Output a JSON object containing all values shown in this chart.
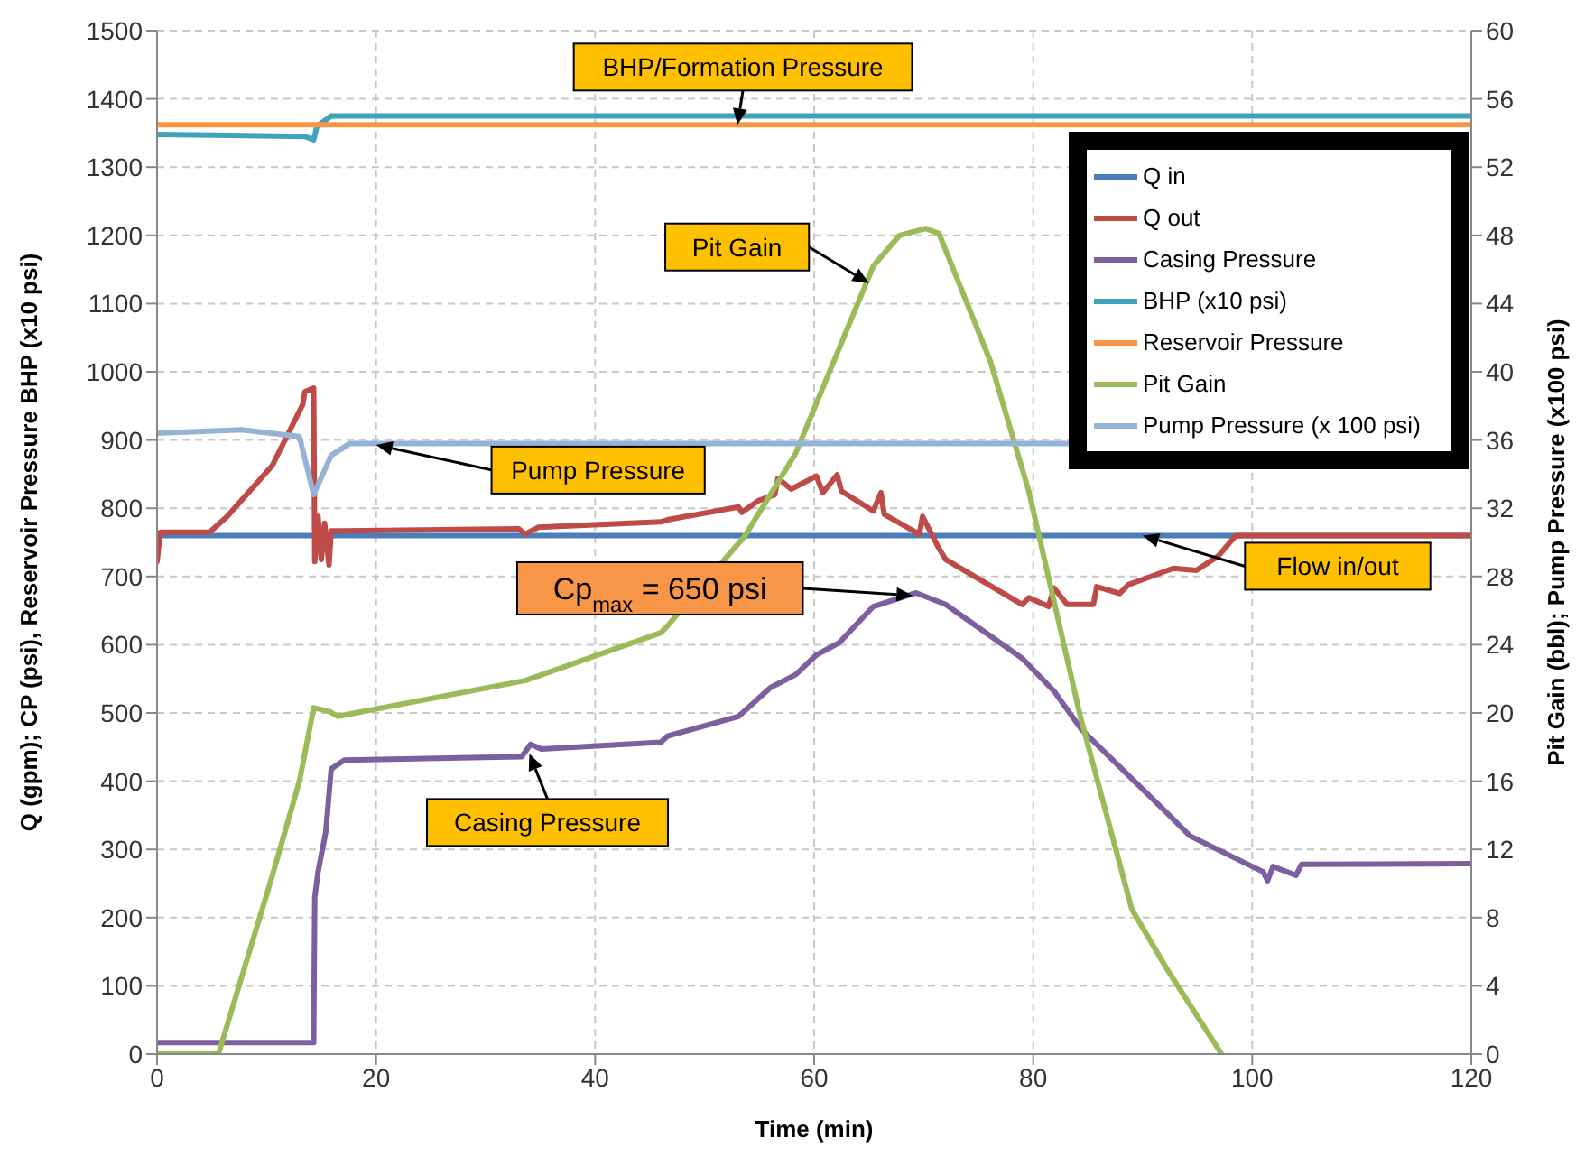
{
  "chart_data": {
    "type": "line",
    "xlabel": "Time (min)",
    "ylabel": "Q (gpm); CP (psi), Reservoir Pressure BHP (x10 psi)",
    "y2label": "Pit Gain (bbl); Pump Pressure (x100 psi)",
    "xlim": [
      0,
      120
    ],
    "xticks": [
      0,
      20,
      40,
      60,
      80,
      100,
      120
    ],
    "ylim": [
      0,
      1500
    ],
    "yticks": [
      0,
      100,
      200,
      300,
      400,
      500,
      600,
      700,
      800,
      900,
      1000,
      1100,
      1200,
      1300,
      1400,
      1500
    ],
    "y2lim": [
      0,
      60
    ],
    "y2ticks": [
      0,
      4,
      8,
      12,
      16,
      20,
      24,
      28,
      32,
      36,
      40,
      44,
      48,
      52,
      56,
      60
    ],
    "grid": true,
    "legend": "top right",
    "line_style": "solid",
    "marker": "none",
    "series": [
      {
        "name": "Q in",
        "color": "#4a7ebb",
        "x": [
          0,
          120
        ],
        "values": [
          760,
          760
        ]
      },
      {
        "name": "Q out",
        "color": "#be4b48",
        "x": [
          0,
          0.3,
          4.8,
          6.4,
          10.5,
          13.3,
          13.5,
          14.3,
          14.4,
          14.7,
          15,
          15.3,
          15.7,
          15.9,
          17.1,
          33,
          33.6,
          34.8,
          46,
          46.6,
          53.1,
          53.4,
          54.9,
          56.4,
          56.7,
          57.9,
          60.2,
          60.8,
          62.1,
          62.5,
          65.4,
          66.1,
          66.4,
          69.6,
          69.9,
          71.4,
          72,
          79,
          79.6,
          81.4,
          81.9,
          83.1,
          85.5,
          85.8,
          87.9,
          88.7,
          92.8,
          94.9,
          96.9,
          98.5,
          120
        ],
        "values": [
          722,
          765,
          765,
          788,
          862,
          952,
          971,
          976,
          722,
          788,
          725,
          778,
          717,
          767,
          767,
          770,
          762,
          772,
          780,
          783,
          802,
          794,
          811,
          820,
          844,
          828,
          847,
          823,
          849,
          825,
          796,
          823,
          791,
          762,
          788,
          741,
          725,
          659,
          669,
          656,
          683,
          659,
          659,
          685,
          675,
          688,
          712,
          709,
          730,
          760,
          760
        ]
      },
      {
        "name": "Casing Pressure",
        "color": "#7d5fa0",
        "x": [
          0,
          14.3,
          14.4,
          14.7,
          15.4,
          15.9,
          17.1,
          33.3,
          34.1,
          35.1,
          46,
          46.6,
          53.1,
          56,
          58.3,
          60.2,
          62.3,
          65.4,
          69.3,
          72,
          79,
          81.9,
          84.4,
          92.3,
          94.3,
          96.3,
          101,
          101.4,
          101.9,
          104,
          104.5,
          120
        ],
        "values": [
          17,
          17,
          230,
          267,
          325,
          418,
          431,
          436,
          454,
          447,
          457,
          466,
          495,
          537,
          556,
          585,
          603,
          656,
          676,
          659,
          580,
          532,
          476,
          352,
          320,
          304,
          267,
          254,
          275,
          262,
          278,
          279
        ]
      },
      {
        "name": "BHP (x10 psi)",
        "color": "#3fa3bc",
        "x": [
          0,
          13.5,
          14.3,
          14.6,
          15.9,
          120
        ],
        "values": [
          1348,
          1345,
          1340,
          1360,
          1375,
          1375
        ]
      },
      {
        "name": "Reservoir Pressure",
        "color": "#f79646",
        "x": [
          0,
          120
        ],
        "values": [
          1362,
          1362
        ]
      },
      {
        "name": "Pit Gain",
        "color": "#9bbb59",
        "axis": "y2",
        "x": [
          0,
          5.6,
          10.5,
          13,
          14.3,
          15.7,
          16.5,
          33.6,
          46,
          46.6,
          53.7,
          58.3,
          65.4,
          67.8,
          70.2,
          71.4,
          76.1,
          79.6,
          84.3,
          89,
          92.1,
          97.2
        ],
        "values": [
          0,
          0,
          10.4,
          16,
          20.3,
          20.1,
          19.8,
          21.9,
          24.7,
          25.1,
          30.4,
          35.2,
          46.2,
          48,
          48.4,
          48.1,
          40.6,
          33,
          19.8,
          8.5,
          5.1,
          0
        ]
      },
      {
        "name": "Pump Pressure (x 100 psi)",
        "color": "#95b3d7",
        "axis": "y2",
        "x": [
          0,
          7.7,
          13,
          14.3,
          15.9,
          17.6,
          40,
          60,
          83.5
        ],
        "values": [
          36.4,
          36.6,
          36.2,
          32.8,
          35.1,
          35.8,
          35.8,
          35.8,
          35.8
        ]
      }
    ],
    "annotations": [
      {
        "text": "BHP/Formation Pressure",
        "x": 53,
        "y": 1362
      },
      {
        "text": "Pit Gain",
        "x": 65,
        "y": 1130
      },
      {
        "text": "Pump Pressure",
        "x": 20,
        "y": 893
      },
      {
        "text": "Cp$_{max}$ = 650 psi",
        "x": 69,
        "y": 672
      },
      {
        "text": "Casing Pressure",
        "x": 34,
        "y": 440
      },
      {
        "text": "Flow in/out",
        "x": 90,
        "y": 760
      }
    ]
  }
}
